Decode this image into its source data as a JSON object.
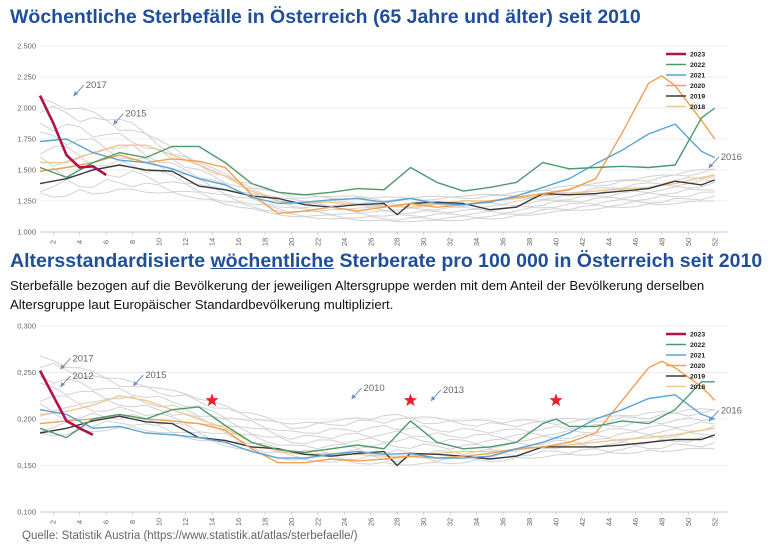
{
  "title_top": "Wöchentliche Sterbefälle in Österreich (65 Jahre und älter) seit 2010",
  "title_bottom": {
    "pre": "Altersstandardisierte ",
    "underlined": "wöchentliche",
    "post": " Sterberate pro 100 000 in Österreich seit 2010"
  },
  "subtitle": "Sterbefälle bezogen auf die Bevölkerung der jeweiligen Altersgruppe werden mit dem Anteil der Bevölkerung derselben Altersgruppe laut Europäischer Standardbevölkerung multipliziert.",
  "source": "Quelle: Statistik Austria (https://www.statistik.at/atlas/sterbefaelle/)",
  "colors": {
    "title": "#1f4e9b",
    "y2023": "#b0124c",
    "y2022": "#4e9a6a",
    "y2021": "#5aa3d6",
    "y2020": "#f0a050",
    "y2019": "#3a3a3a",
    "y2018": "#f0c890",
    "background_years": "#d2d2d2",
    "annotation": "#6d8fbf",
    "star": "#e8202a"
  },
  "chart_data": [
    {
      "type": "line",
      "xlabel": "",
      "ylabel": "",
      "x_ticks": [
        2,
        4,
        6,
        8,
        10,
        12,
        14,
        16,
        18,
        20,
        22,
        24,
        26,
        28,
        30,
        32,
        34,
        36,
        38,
        40,
        42,
        44,
        46,
        48,
        50,
        52
      ],
      "y_ticks": [
        "1.000",
        "1.250",
        "1.500",
        "1.750",
        "2.000",
        "2.250",
        "2.500"
      ],
      "ylim": [
        1000,
        2500
      ],
      "xlim": [
        1,
        53
      ],
      "legend": [
        "2023",
        "2022",
        "2021",
        "2020",
        "2019",
        "2018"
      ],
      "annotations": [
        {
          "text": "2017",
          "x": 4,
          "y": 2160
        },
        {
          "text": "2015",
          "x": 7,
          "y": 1930
        },
        {
          "text": "2016",
          "x": 52,
          "y": 1580
        }
      ],
      "series": [
        {
          "name": "2023",
          "x": [
            1,
            2,
            3,
            4,
            5,
            6
          ],
          "values": [
            2100,
            1880,
            1620,
            1520,
            1530,
            1460
          ]
        },
        {
          "name": "2022",
          "x": [
            1,
            3,
            5,
            7,
            9,
            11,
            13,
            15,
            17,
            19,
            21,
            23,
            25,
            27,
            29,
            31,
            33,
            35,
            37,
            39,
            41,
            43,
            45,
            47,
            49,
            51,
            52
          ],
          "values": [
            1520,
            1440,
            1560,
            1640,
            1600,
            1690,
            1690,
            1560,
            1390,
            1320,
            1300,
            1320,
            1350,
            1340,
            1520,
            1400,
            1330,
            1360,
            1400,
            1560,
            1510,
            1520,
            1530,
            1520,
            1540,
            1920,
            2000
          ]
        },
        {
          "name": "2021",
          "x": [
            1,
            3,
            5,
            7,
            9,
            11,
            13,
            15,
            17,
            19,
            21,
            23,
            25,
            27,
            29,
            31,
            33,
            35,
            37,
            39,
            41,
            43,
            45,
            47,
            49,
            51,
            52
          ],
          "values": [
            1730,
            1750,
            1640,
            1580,
            1560,
            1510,
            1430,
            1380,
            1280,
            1230,
            1240,
            1260,
            1270,
            1240,
            1270,
            1230,
            1220,
            1240,
            1290,
            1360,
            1430,
            1550,
            1660,
            1790,
            1870,
            1650,
            1600
          ]
        },
        {
          "name": "2020",
          "x": [
            1,
            3,
            5,
            7,
            9,
            11,
            13,
            15,
            17,
            19,
            21,
            23,
            25,
            27,
            29,
            31,
            33,
            35,
            37,
            39,
            41,
            43,
            45,
            47,
            48,
            49,
            51,
            52
          ],
          "values": [
            1490,
            1520,
            1560,
            1620,
            1560,
            1590,
            1570,
            1520,
            1300,
            1150,
            1170,
            1200,
            1170,
            1200,
            1230,
            1200,
            1220,
            1250,
            1280,
            1310,
            1340,
            1430,
            1800,
            2200,
            2260,
            2180,
            1900,
            1750
          ]
        },
        {
          "name": "2019",
          "x": [
            1,
            3,
            5,
            7,
            9,
            11,
            13,
            15,
            17,
            19,
            21,
            23,
            25,
            27,
            28,
            29,
            31,
            33,
            35,
            37,
            39,
            41,
            43,
            45,
            47,
            49,
            51,
            52
          ],
          "values": [
            1390,
            1430,
            1500,
            1540,
            1500,
            1490,
            1370,
            1340,
            1290,
            1270,
            1220,
            1200,
            1220,
            1230,
            1140,
            1230,
            1240,
            1230,
            1180,
            1200,
            1310,
            1300,
            1310,
            1330,
            1350,
            1410,
            1380,
            1420
          ]
        },
        {
          "name": "2018",
          "x": [
            1,
            3,
            5,
            7,
            9,
            11,
            13,
            15,
            17,
            19,
            21,
            23,
            25,
            27,
            29,
            31,
            33,
            35,
            37,
            39,
            41,
            43,
            45,
            47,
            49,
            51,
            52
          ],
          "values": [
            1560,
            1560,
            1640,
            1700,
            1700,
            1620,
            1540,
            1450,
            1330,
            1250,
            1230,
            1240,
            1220,
            1210,
            1200,
            1230,
            1250,
            1250,
            1270,
            1290,
            1310,
            1330,
            1350,
            1360,
            1390,
            1440,
            1460
          ]
        },
        {
          "name": "2010-2017",
          "x": [
            1,
            4,
            8,
            12,
            16,
            20,
            24,
            28,
            32,
            36,
            40,
            44,
            48,
            52
          ],
          "values": [
            1380,
            1470,
            1510,
            1440,
            1300,
            1210,
            1200,
            1180,
            1200,
            1220,
            1260,
            1290,
            1320,
            1350
          ],
          "band_low": [
            1270,
            1300,
            1330,
            1290,
            1200,
            1120,
            1100,
            1080,
            1090,
            1110,
            1160,
            1190,
            1220,
            1250
          ],
          "band_high": [
            2080,
            2000,
            1880,
            1620,
            1420,
            1300,
            1290,
            1280,
            1290,
            1310,
            1360,
            1410,
            1460,
            1520
          ]
        }
      ]
    },
    {
      "type": "line",
      "xlabel": "",
      "ylabel": "",
      "x_ticks": [
        2,
        4,
        6,
        8,
        10,
        12,
        14,
        16,
        18,
        20,
        22,
        24,
        26,
        28,
        30,
        32,
        34,
        36,
        38,
        40,
        42,
        44,
        46,
        48,
        50,
        52
      ],
      "y_ticks": [
        "0,100",
        "0,150",
        "0,200",
        "0,250",
        "0,300"
      ],
      "ylim": [
        0.1,
        0.3
      ],
      "xlim": [
        1,
        53
      ],
      "legend": [
        "2023",
        "2022",
        "2021",
        "2020",
        "2019",
        "2018"
      ],
      "annotations": [
        {
          "text": "2017",
          "x": 3,
          "y": 0.262
        },
        {
          "text": "2012",
          "x": 3,
          "y": 0.243
        },
        {
          "text": "2015",
          "x": 8.5,
          "y": 0.244
        },
        {
          "text": "2010",
          "x": 25,
          "y": 0.23
        },
        {
          "text": "2013",
          "x": 31,
          "y": 0.228
        },
        {
          "text": "2016",
          "x": 52,
          "y": 0.206
        }
      ],
      "stars_at_week": [
        14,
        29,
        40
      ],
      "series": [
        {
          "name": "2023",
          "x": [
            1,
            2,
            3,
            4,
            5
          ],
          "values": [
            0.252,
            0.225,
            0.198,
            0.19,
            0.183
          ]
        },
        {
          "name": "2022",
          "x": [
            1,
            3,
            5,
            7,
            9,
            11,
            13,
            15,
            17,
            19,
            21,
            23,
            25,
            27,
            29,
            31,
            33,
            35,
            37,
            39,
            40,
            41,
            43,
            45,
            47,
            49,
            51,
            52
          ],
          "values": [
            0.19,
            0.18,
            0.2,
            0.205,
            0.2,
            0.21,
            0.213,
            0.193,
            0.175,
            0.167,
            0.164,
            0.168,
            0.172,
            0.168,
            0.198,
            0.175,
            0.168,
            0.17,
            0.175,
            0.195,
            0.2,
            0.192,
            0.192,
            0.198,
            0.195,
            0.21,
            0.24,
            0.24
          ]
        },
        {
          "name": "2021",
          "x": [
            1,
            3,
            5,
            7,
            9,
            11,
            13,
            15,
            17,
            19,
            21,
            23,
            25,
            27,
            29,
            31,
            33,
            35,
            37,
            39,
            41,
            43,
            45,
            47,
            49,
            51,
            52
          ],
          "values": [
            0.21,
            0.205,
            0.19,
            0.192,
            0.185,
            0.183,
            0.18,
            0.175,
            0.165,
            0.158,
            0.158,
            0.162,
            0.165,
            0.162,
            0.163,
            0.158,
            0.158,
            0.16,
            0.168,
            0.175,
            0.185,
            0.2,
            0.21,
            0.222,
            0.226,
            0.205,
            0.2
          ]
        },
        {
          "name": "2020",
          "x": [
            1,
            3,
            5,
            7,
            9,
            11,
            13,
            15,
            17,
            19,
            21,
            23,
            25,
            27,
            29,
            31,
            33,
            35,
            37,
            39,
            41,
            43,
            45,
            47,
            48,
            49,
            51,
            52
          ],
          "values": [
            0.195,
            0.198,
            0.2,
            0.205,
            0.2,
            0.198,
            0.195,
            0.188,
            0.168,
            0.153,
            0.153,
            0.157,
            0.155,
            0.157,
            0.16,
            0.158,
            0.16,
            0.163,
            0.168,
            0.17,
            0.175,
            0.185,
            0.22,
            0.255,
            0.262,
            0.255,
            0.235,
            0.22
          ]
        },
        {
          "name": "2019",
          "x": [
            1,
            3,
            5,
            7,
            9,
            11,
            13,
            15,
            17,
            19,
            21,
            23,
            25,
            27,
            28,
            29,
            31,
            33,
            35,
            37,
            39,
            41,
            43,
            45,
            47,
            49,
            51,
            52
          ],
          "values": [
            0.185,
            0.19,
            0.198,
            0.203,
            0.197,
            0.195,
            0.18,
            0.177,
            0.17,
            0.168,
            0.162,
            0.16,
            0.163,
            0.165,
            0.15,
            0.163,
            0.162,
            0.16,
            0.157,
            0.16,
            0.17,
            0.17,
            0.17,
            0.172,
            0.175,
            0.178,
            0.178,
            0.183
          ]
        },
        {
          "name": "2018",
          "x": [
            1,
            3,
            5,
            7,
            9,
            11,
            13,
            15,
            17,
            19,
            21,
            23,
            25,
            27,
            29,
            31,
            33,
            35,
            37,
            39,
            41,
            43,
            45,
            47,
            49,
            51,
            52
          ],
          "values": [
            0.205,
            0.208,
            0.215,
            0.225,
            0.22,
            0.21,
            0.2,
            0.19,
            0.175,
            0.165,
            0.162,
            0.163,
            0.162,
            0.16,
            0.16,
            0.163,
            0.165,
            0.165,
            0.167,
            0.17,
            0.172,
            0.175,
            0.178,
            0.18,
            0.183,
            0.188,
            0.19
          ]
        },
        {
          "name": "2010-2017",
          "x": [
            1,
            4,
            8,
            12,
            16,
            20,
            24,
            28,
            32,
            36,
            40,
            44,
            48,
            52
          ],
          "values": [
            0.2,
            0.205,
            0.21,
            0.2,
            0.185,
            0.172,
            0.17,
            0.168,
            0.168,
            0.17,
            0.175,
            0.178,
            0.18,
            0.183
          ],
          "band_low": [
            0.18,
            0.185,
            0.19,
            0.18,
            0.168,
            0.155,
            0.153,
            0.15,
            0.152,
            0.155,
            0.16,
            0.162,
            0.165,
            0.168
          ],
          "band_high": [
            0.268,
            0.255,
            0.24,
            0.228,
            0.21,
            0.195,
            0.2,
            0.205,
            0.2,
            0.198,
            0.2,
            0.203,
            0.208,
            0.212
          ]
        }
      ]
    }
  ]
}
